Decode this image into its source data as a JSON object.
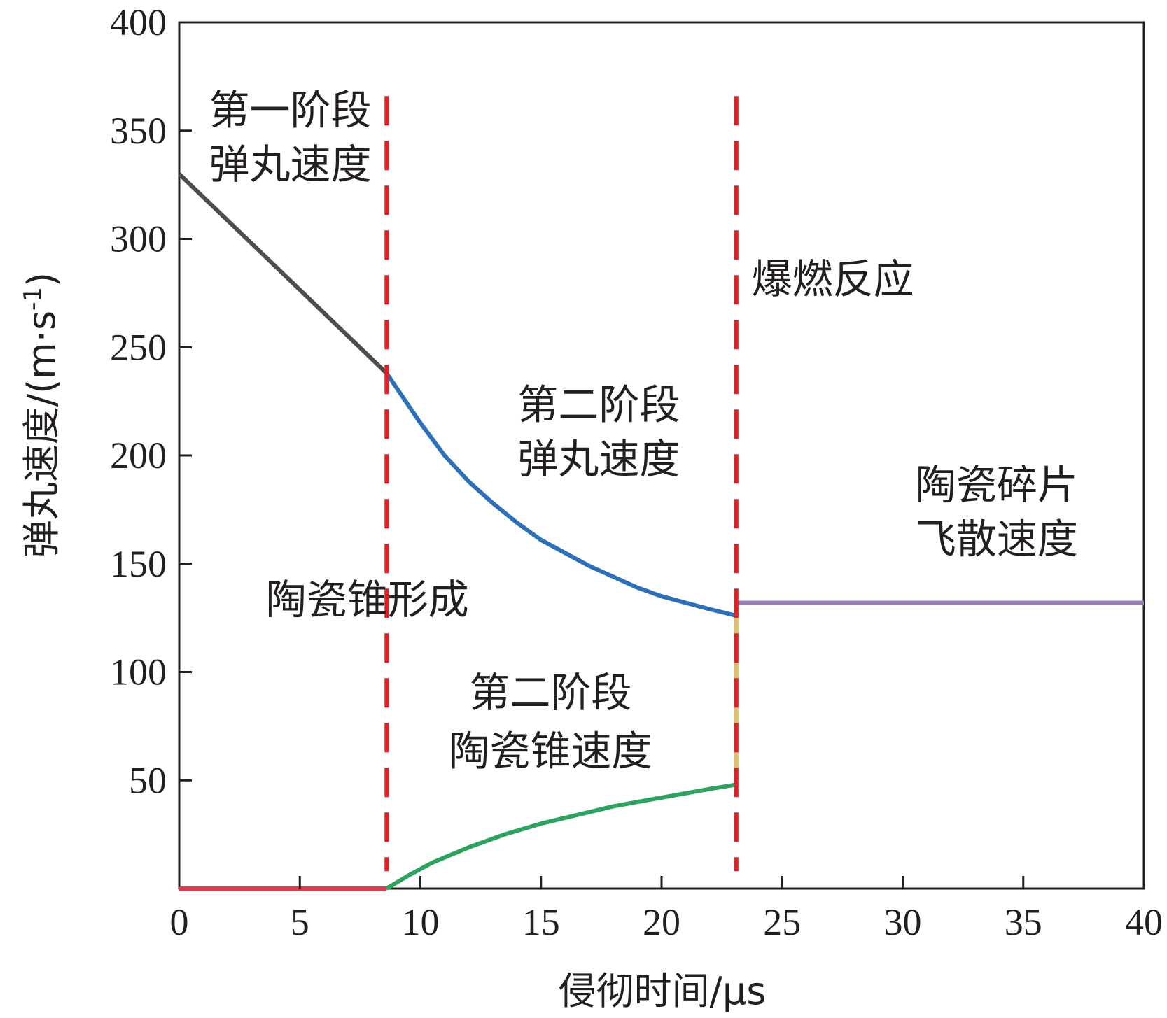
{
  "chart_data": {
    "type": "line",
    "xlabel": "侵彻时间/μs",
    "ylabel": "弹丸速度/(m·s",
    "ylabel_sup": "-1",
    "ylabel_close": ")",
    "xlim": [
      0,
      40
    ],
    "ylim": [
      0,
      400
    ],
    "xticks": [
      0,
      5,
      10,
      15,
      20,
      25,
      30,
      35,
      40
    ],
    "yticks": [
      50,
      100,
      150,
      200,
      250,
      300,
      350,
      400
    ],
    "grid": false,
    "legend": "none",
    "series": [
      {
        "key": "stage1_projectile",
        "color": "#4d4d4f",
        "points": [
          [
            0,
            330
          ],
          [
            8.6,
            238
          ]
        ]
      },
      {
        "key": "stage2_projectile",
        "color": "#2e6fba",
        "points": [
          [
            8.6,
            238
          ],
          [
            10,
            215
          ],
          [
            11,
            200
          ],
          [
            12,
            188
          ],
          [
            13,
            178
          ],
          [
            14,
            169
          ],
          [
            15,
            161
          ],
          [
            16,
            155
          ],
          [
            17,
            149
          ],
          [
            18,
            144
          ],
          [
            19,
            139
          ],
          [
            20,
            135
          ],
          [
            21,
            132
          ],
          [
            22,
            129
          ],
          [
            23.1,
            126
          ]
        ]
      },
      {
        "key": "stage1_cone",
        "color": "#e03a4d",
        "points": [
          [
            0,
            0
          ],
          [
            8.6,
            0
          ]
        ]
      },
      {
        "key": "stage2_cone",
        "color": "#2ea35f",
        "points": [
          [
            8.6,
            0
          ],
          [
            9.5,
            6
          ],
          [
            10.5,
            12
          ],
          [
            12,
            19
          ],
          [
            13.5,
            25
          ],
          [
            15,
            30
          ],
          [
            16.5,
            34
          ],
          [
            18,
            38
          ],
          [
            19.5,
            41
          ],
          [
            21,
            44
          ],
          [
            22,
            46
          ],
          [
            23.1,
            48
          ]
        ]
      },
      {
        "key": "deflagration_jump",
        "color": "#e3bd6b",
        "points": [
          [
            23.1,
            48
          ],
          [
            23.1,
            133
          ]
        ]
      },
      {
        "key": "fragment_velocity",
        "color": "#9a7cb8",
        "points": [
          [
            23.1,
            132
          ],
          [
            40,
            132
          ]
        ]
      }
    ],
    "vlines": [
      {
        "x": 8.6,
        "color": "#e31e24",
        "y_from": 8,
        "y_to": 366
      },
      {
        "x": 23.1,
        "color": "#e31e24",
        "y_from": 8,
        "y_to": 366
      }
    ],
    "annotations": [
      {
        "lines": [
          "第一阶段",
          "弹丸速度"
        ],
        "x": 4.6,
        "y": [
          353,
          328
        ]
      },
      {
        "lines": [
          "爆燃反应"
        ],
        "x": 27.1,
        "y": [
          275
        ]
      },
      {
        "lines": [
          "第二阶段",
          "弹丸速度"
        ],
        "x": 17.4,
        "y": [
          217,
          192
        ]
      },
      {
        "lines": [
          "陶瓷碎片",
          "飞散速度"
        ],
        "x": 33.9,
        "y": [
          180,
          155
        ]
      },
      {
        "lines": [
          "陶瓷锥形成"
        ],
        "x": 7.8,
        "y": [
          127
        ]
      },
      {
        "lines": [
          "第二阶段",
          "陶瓷锥速度"
        ],
        "x": 15.4,
        "y": [
          84,
          57
        ]
      }
    ]
  }
}
